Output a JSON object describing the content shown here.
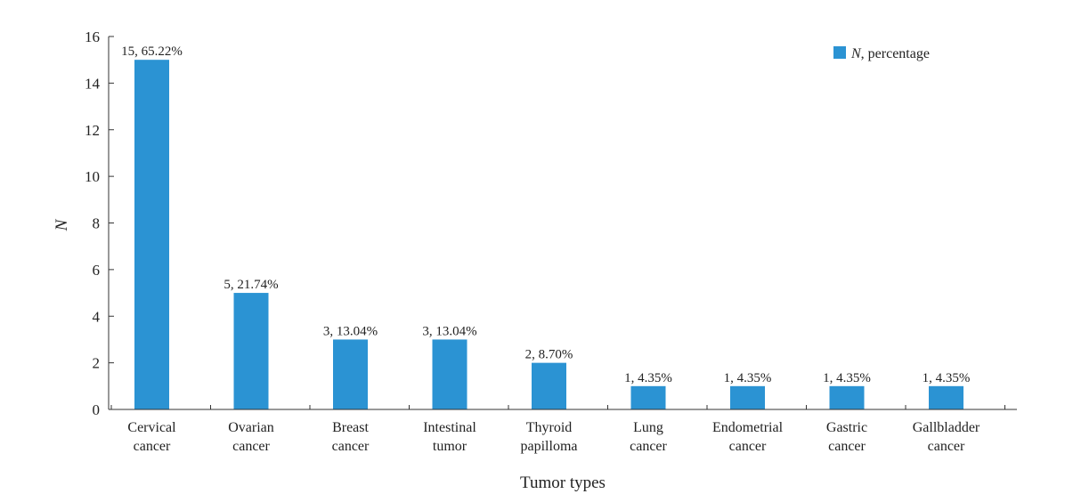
{
  "chart_data": {
    "type": "bar",
    "categories": [
      [
        "Cervical",
        "cancer"
      ],
      [
        "Ovarian",
        "cancer"
      ],
      [
        "Breast",
        "cancer"
      ],
      [
        "Intestinal",
        "tumor"
      ],
      [
        "Thyroid",
        "papilloma"
      ],
      [
        "Lung",
        "cancer"
      ],
      [
        "Endometrial",
        "cancer"
      ],
      [
        "Gastric",
        "cancer"
      ],
      [
        "Gallbladder",
        "cancer"
      ]
    ],
    "series": [
      {
        "name": "N, percentage",
        "name_italic_part": "N",
        "name_rest": ", percentage",
        "values": [
          15,
          5,
          3,
          3,
          2,
          1,
          1,
          1,
          1
        ],
        "labels": [
          "15, 65.22%",
          "5, 21.74%",
          "3, 13.04%",
          "3, 13.04%",
          "2, 8.70%",
          "1, 4.35%",
          "1, 4.35%",
          "1, 4.35%",
          "1, 4.35%"
        ]
      }
    ],
    "xlabel": "Tumor types",
    "ylabel": "N",
    "ylim": [
      0,
      16
    ],
    "yticks": [
      0,
      2,
      4,
      6,
      8,
      10,
      12,
      14,
      16
    ],
    "grid": false,
    "legend_position": "top-right",
    "bar_color": "#2b93d3",
    "axis_color": "#333333"
  }
}
